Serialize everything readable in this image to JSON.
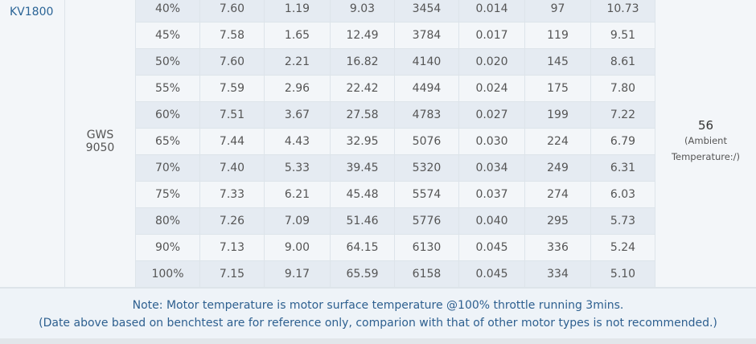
{
  "table": {
    "motor": "KV1800",
    "prop": [
      "GWS",
      "9050"
    ],
    "rows": [
      [
        "40%",
        "7.60",
        "1.19",
        "9.03",
        "3454",
        "0.014",
        "97",
        "10.73"
      ],
      [
        "45%",
        "7.58",
        "1.65",
        "12.49",
        "3784",
        "0.017",
        "119",
        "9.51"
      ],
      [
        "50%",
        "7.60",
        "2.21",
        "16.82",
        "4140",
        "0.020",
        "145",
        "8.61"
      ],
      [
        "55%",
        "7.59",
        "2.96",
        "22.42",
        "4494",
        "0.024",
        "175",
        "7.80"
      ],
      [
        "60%",
        "7.51",
        "3.67",
        "27.58",
        "4783",
        "0.027",
        "199",
        "7.22"
      ],
      [
        "65%",
        "7.44",
        "4.43",
        "32.95",
        "5076",
        "0.030",
        "224",
        "6.79"
      ],
      [
        "70%",
        "7.40",
        "5.33",
        "39.45",
        "5320",
        "0.034",
        "249",
        "6.31"
      ],
      [
        "75%",
        "7.33",
        "6.21",
        "45.48",
        "5574",
        "0.037",
        "274",
        "6.03"
      ],
      [
        "80%",
        "7.26",
        "7.09",
        "51.46",
        "5776",
        "0.040",
        "295",
        "5.73"
      ],
      [
        "90%",
        "7.13",
        "9.00",
        "64.15",
        "6130",
        "0.045",
        "336",
        "5.24"
      ],
      [
        "100%",
        "7.15",
        "9.17",
        "65.59",
        "6158",
        "0.045",
        "334",
        "5.10"
      ]
    ],
    "temperature": "56",
    "temperature_note": "(Ambient Temperature:/)"
  },
  "note": [
    "Note: Motor temperature is motor surface temperature @100% throttle running 3mins.",
    "(Date above based on benchtest are for reference only, comparion with that of other motor types is not recommended.)"
  ]
}
